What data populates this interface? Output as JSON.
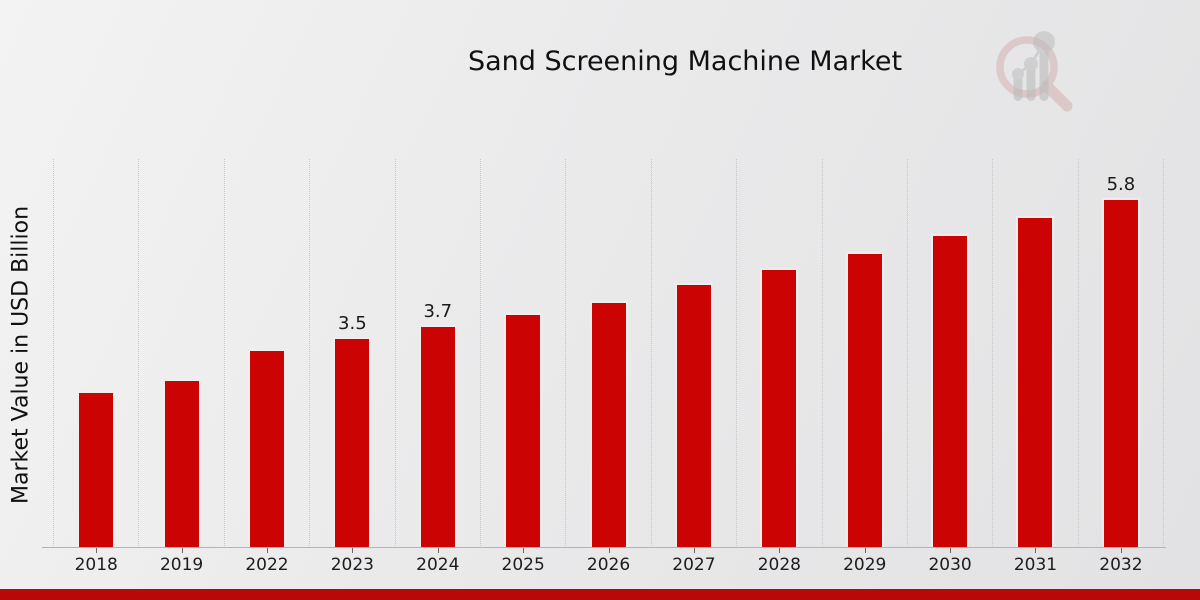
{
  "page_title": "Sand Screening Machine Market",
  "chart_data": {
    "type": "bar",
    "title": "Sand Screening Machine Market",
    "xlabel": "",
    "ylabel": "Market Value in USD Billion",
    "categories": [
      "2018",
      "2019",
      "2022",
      "2023",
      "2024",
      "2025",
      "2026",
      "2027",
      "2028",
      "2029",
      "2030",
      "2031",
      "2032"
    ],
    "values": [
      2.6,
      2.8,
      3.3,
      3.5,
      3.7,
      3.9,
      4.1,
      4.4,
      4.65,
      4.9,
      5.2,
      5.5,
      5.8
    ],
    "bar_labels": [
      "",
      "",
      "",
      "3.5",
      "3.7",
      "",
      "",
      "",
      "",
      "",
      "",
      "",
      "5.8"
    ],
    "ylim": [
      0,
      6.45
    ],
    "grid": "vertical-dotted",
    "legend": "none",
    "colors": {
      "bar": "#cb0303",
      "bar_edge": "#eeeeee",
      "label_text": "#1a1a1a",
      "gridline": "#c7c7c7",
      "axis_line": "#b3b3b3",
      "footer_strip": "#b90808",
      "logo_ring": "#cf9d9d",
      "logo_bars": "#b8b8b8"
    }
  }
}
